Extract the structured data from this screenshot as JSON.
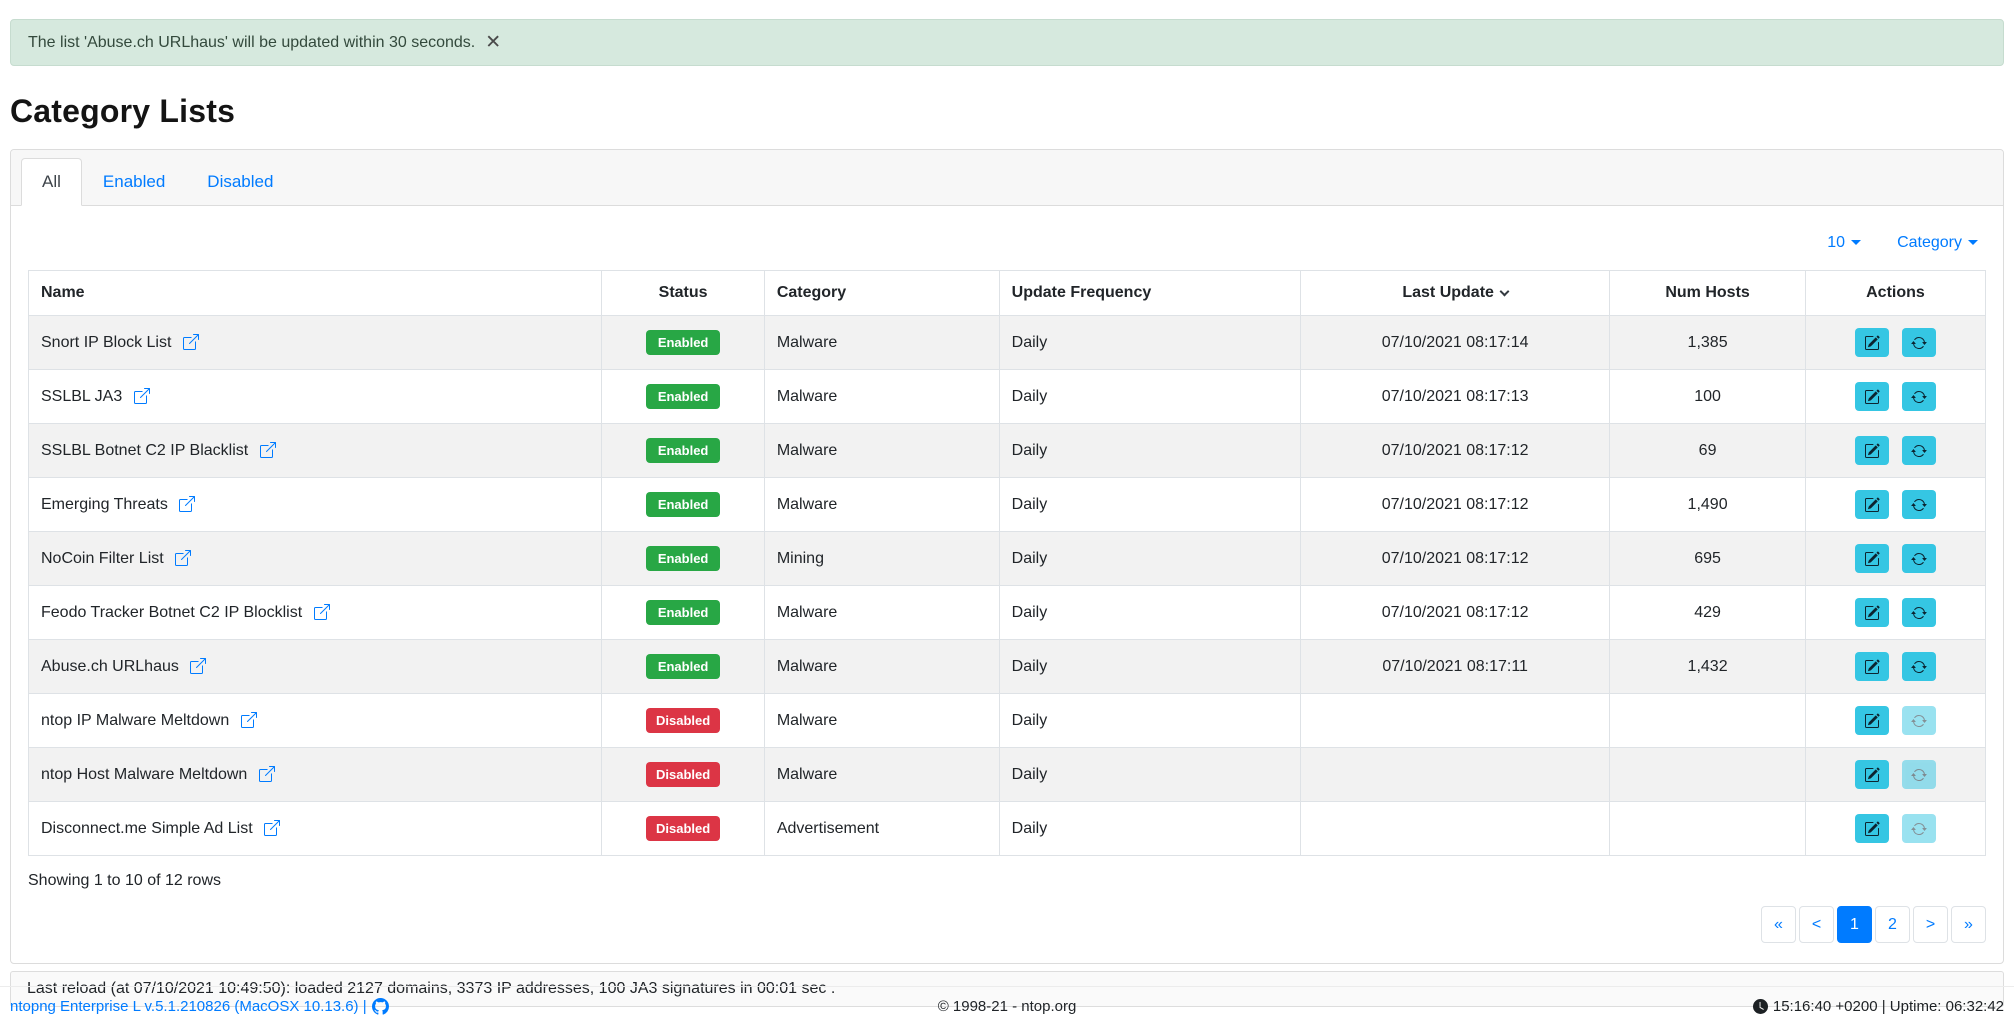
{
  "alert": {
    "message": "The list 'Abuse.ch URLhaus' will be updated within 30 seconds.",
    "close_label": "✕"
  },
  "page": {
    "title": "Category Lists"
  },
  "tabs": [
    {
      "label": "All",
      "active": true
    },
    {
      "label": "Enabled",
      "active": false
    },
    {
      "label": "Disabled",
      "active": false
    }
  ],
  "controls": {
    "page_size": "10",
    "filter": "Category"
  },
  "table": {
    "headers": [
      {
        "label": "Name",
        "align": "left"
      },
      {
        "label": "Status",
        "align": "center"
      },
      {
        "label": "Category",
        "align": "left"
      },
      {
        "label": "Update Frequency",
        "align": "left"
      },
      {
        "label": "Last Update",
        "align": "center",
        "sorted": true
      },
      {
        "label": "Num Hosts",
        "align": "center"
      },
      {
        "label": "Actions",
        "align": "center"
      }
    ],
    "rows": [
      {
        "name": "Snort IP Block List",
        "status": "Enabled",
        "category": "Malware",
        "frequency": "Daily",
        "last_update": "07/10/2021 08:17:14",
        "num_hosts": "1,385",
        "sync_enabled": true
      },
      {
        "name": "SSLBL JA3",
        "status": "Enabled",
        "category": "Malware",
        "frequency": "Daily",
        "last_update": "07/10/2021 08:17:13",
        "num_hosts": "100",
        "sync_enabled": true
      },
      {
        "name": "SSLBL Botnet C2 IP Blacklist",
        "status": "Enabled",
        "category": "Malware",
        "frequency": "Daily",
        "last_update": "07/10/2021 08:17:12",
        "num_hosts": "69",
        "sync_enabled": true
      },
      {
        "name": "Emerging Threats",
        "status": "Enabled",
        "category": "Malware",
        "frequency": "Daily",
        "last_update": "07/10/2021 08:17:12",
        "num_hosts": "1,490",
        "sync_enabled": true
      },
      {
        "name": "NoCoin Filter List",
        "status": "Enabled",
        "category": "Mining",
        "frequency": "Daily",
        "last_update": "07/10/2021 08:17:12",
        "num_hosts": "695",
        "sync_enabled": true
      },
      {
        "name": "Feodo Tracker Botnet C2 IP Blocklist",
        "status": "Enabled",
        "category": "Malware",
        "frequency": "Daily",
        "last_update": "07/10/2021 08:17:12",
        "num_hosts": "429",
        "sync_enabled": true
      },
      {
        "name": "Abuse.ch URLhaus",
        "status": "Enabled",
        "category": "Malware",
        "frequency": "Daily",
        "last_update": "07/10/2021 08:17:11",
        "num_hosts": "1,432",
        "sync_enabled": true
      },
      {
        "name": "ntop IP Malware Meltdown",
        "status": "Disabled",
        "category": "Malware",
        "frequency": "Daily",
        "last_update": "",
        "num_hosts": "",
        "sync_enabled": false
      },
      {
        "name": "ntop Host Malware Meltdown",
        "status": "Disabled",
        "category": "Malware",
        "frequency": "Daily",
        "last_update": "",
        "num_hosts": "",
        "sync_enabled": false
      },
      {
        "name": "Disconnect.me Simple Ad List",
        "status": "Disabled",
        "category": "Advertisement",
        "frequency": "Daily",
        "last_update": "",
        "num_hosts": "",
        "sync_enabled": false
      }
    ]
  },
  "summary": "Showing 1 to 10 of 12 rows",
  "pagination": {
    "items": [
      {
        "label": "«",
        "active": false
      },
      {
        "label": "<",
        "active": false
      },
      {
        "label": "1",
        "active": true
      },
      {
        "label": "2",
        "active": false
      },
      {
        "label": ">",
        "active": false
      },
      {
        "label": "»",
        "active": false
      }
    ]
  },
  "reload_bar": "Last reload (at 07/10/2021 10:49:50): loaded 2127 domains, 3373 IP addresses, 100 JA3 signatures in 00:01 sec .",
  "footer": {
    "left": "ntopng Enterprise L v.5.1.210826 (MacOSX 10.13.6) |",
    "center": "© 1998-21 - ntop.org",
    "right": "15:16:40 +0200 | Uptime: 06:32:42"
  },
  "icons": {
    "close": "x-mark",
    "external_link": "box-arrow-up-right",
    "edit": "pencil-square",
    "sync": "arrow-repeat",
    "github": "github-mark",
    "clock": "clock-fill",
    "sort": "chevron-down",
    "dropdown": "caret-down"
  },
  "colors": {
    "accent": "#007bff",
    "success": "#28a745",
    "danger": "#dc3545",
    "action_button": "#35c6e3",
    "alert_background": "#d6e9de",
    "stripe": "#f2f2f2"
  }
}
